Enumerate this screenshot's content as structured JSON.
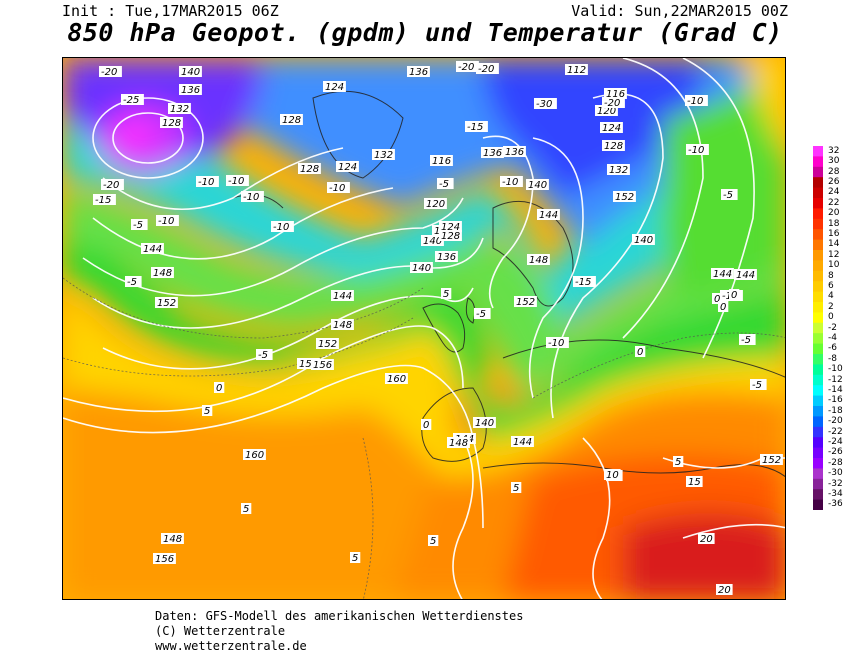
{
  "header": {
    "init": "Init : Tue,17MAR2015 06Z",
    "valid": "Valid: Sun,22MAR2015 00Z",
    "title": "850 hPa Geopot. (gpdm) und Temperatur (Grad C)"
  },
  "colorbar": {
    "labels": [
      "32",
      "30",
      "28",
      "26",
      "24",
      "22",
      "20",
      "18",
      "16",
      "14",
      "12",
      "10",
      "8",
      "6",
      "4",
      "2",
      "0",
      "-2",
      "-4",
      "-6",
      "-8",
      "-10",
      "-12",
      "-14",
      "-16",
      "-18",
      "-20",
      "-22",
      "-24",
      "-26",
      "-28",
      "-30",
      "-32",
      "-34",
      "-36"
    ],
    "colors": [
      "#ff33ff",
      "#ff00cc",
      "#cc0099",
      "#b30000",
      "#cc0000",
      "#e60000",
      "#ff1a00",
      "#ff3300",
      "#ff5500",
      "#ff7700",
      "#ff9900",
      "#ffaa00",
      "#ffbb00",
      "#ffcc00",
      "#ffdd00",
      "#ffee00",
      "#ffff00",
      "#ccff33",
      "#99ff33",
      "#66ff33",
      "#33ff66",
      "#00ff99",
      "#00ffcc",
      "#00ffff",
      "#00ccff",
      "#0099ff",
      "#0066ff",
      "#3333ff",
      "#5500ff",
      "#7700ff",
      "#9900ff",
      "#aa33cc",
      "#882299",
      "#661166",
      "#440044"
    ]
  },
  "map": {
    "geopotential_labels": [
      {
        "t": "140"
      },
      {
        "t": "136"
      },
      {
        "t": "132"
      },
      {
        "t": "128"
      },
      {
        "t": "124"
      },
      {
        "t": "128"
      },
      {
        "t": "136"
      },
      {
        "t": "112"
      },
      {
        "t": "116"
      },
      {
        "t": "120"
      },
      {
        "t": "124"
      },
      {
        "t": "128"
      },
      {
        "t": "132"
      },
      {
        "t": "136"
      },
      {
        "t": "140"
      },
      {
        "t": "144"
      },
      {
        "t": "148"
      },
      {
        "t": "152"
      },
      {
        "t": "156"
      },
      {
        "t": "160"
      },
      {
        "t": "144"
      },
      {
        "t": "148"
      },
      {
        "t": "152"
      },
      {
        "t": "156"
      },
      {
        "t": "160"
      },
      {
        "t": "140"
      },
      {
        "t": "144"
      },
      {
        "t": "148"
      },
      {
        "t": "152"
      },
      {
        "t": "144"
      },
      {
        "t": "140"
      },
      {
        "t": "136"
      },
      {
        "t": "132"
      },
      {
        "t": "128"
      },
      {
        "t": "124"
      },
      {
        "t": "120"
      },
      {
        "t": "116"
      },
      {
        "t": "136"
      },
      {
        "t": "132"
      },
      {
        "t": "128"
      },
      {
        "t": "124"
      },
      {
        "t": "140"
      },
      {
        "t": "144"
      },
      {
        "t": "148"
      },
      {
        "t": "152"
      },
      {
        "t": "144"
      },
      {
        "t": "140"
      },
      {
        "t": "152"
      },
      {
        "t": "144"
      },
      {
        "t": "148"
      },
      {
        "t": "156"
      }
    ],
    "temperature_labels": [
      {
        "t": "-20"
      },
      {
        "t": "-25"
      },
      {
        "t": "-20"
      },
      {
        "t": "-15"
      },
      {
        "t": "-10"
      },
      {
        "t": "-5"
      },
      {
        "t": "-10"
      },
      {
        "t": "-10"
      },
      {
        "t": "-10"
      },
      {
        "t": "-10"
      },
      {
        "t": "-5"
      },
      {
        "t": "-5"
      },
      {
        "t": "0"
      },
      {
        "t": "5"
      },
      {
        "t": "5"
      },
      {
        "t": "5"
      },
      {
        "t": "-20"
      },
      {
        "t": "-20"
      },
      {
        "t": "-15"
      },
      {
        "t": "-10"
      },
      {
        "t": "-10"
      },
      {
        "t": "-5"
      },
      {
        "t": "0"
      },
      {
        "t": "-15"
      },
      {
        "t": "-10"
      },
      {
        "t": "-5"
      },
      {
        "t": "0"
      },
      {
        "t": "-10"
      },
      {
        "t": "-5"
      },
      {
        "t": "-5"
      },
      {
        "t": "0"
      },
      {
        "t": "5"
      },
      {
        "t": "10"
      },
      {
        "t": "15"
      },
      {
        "t": "20"
      },
      {
        "t": "20"
      },
      {
        "t": "-30"
      },
      {
        "t": "-20"
      },
      {
        "t": "-10"
      },
      {
        "t": "-10"
      },
      {
        "t": "-5"
      },
      {
        "t": "0"
      },
      {
        "t": "0"
      },
      {
        "t": "5"
      },
      {
        "t": "5"
      },
      {
        "t": "5"
      },
      {
        "t": "10"
      }
    ]
  },
  "footer": {
    "line1": "Daten: GFS-Modell des amerikanischen Wetterdienstes",
    "line2": "(C) Wetterzentrale",
    "line3": "www.wetterzentrale.de"
  }
}
